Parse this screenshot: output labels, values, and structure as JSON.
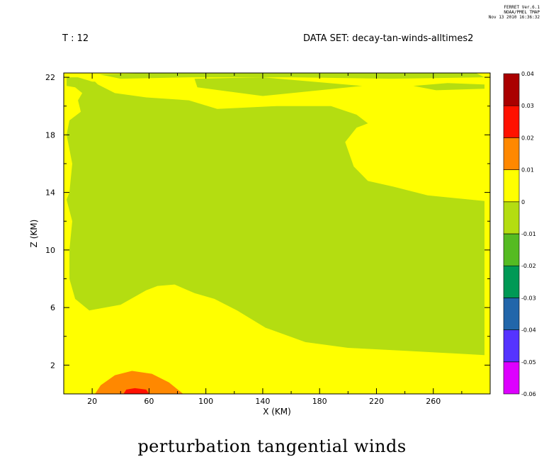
{
  "header": {
    "time_label": "T : 12",
    "dataset_label": "DATA SET: decay-tan-winds-alltimes2",
    "ferret_lines": [
      "FERRET Ver.6.1",
      "NOAA/PMEL TMAP",
      "Nov 13 2010 16:36:32"
    ]
  },
  "chart_data": {
    "type": "heatmap",
    "title": "perturbation tangential winds",
    "xlabel": "X (KM)",
    "ylabel": "Z (KM)",
    "xlim": [
      0,
      300
    ],
    "ylim": [
      0,
      22.3
    ],
    "x_ticks": [
      20,
      60,
      100,
      140,
      180,
      220,
      260
    ],
    "y_ticks": [
      2,
      6,
      10,
      14,
      18,
      22
    ],
    "colorbar": {
      "levels": [
        -0.06,
        -0.05,
        -0.04,
        -0.03,
        -0.02,
        -0.01,
        0,
        0.01,
        0.02,
        0.03,
        0.04
      ],
      "labels": [
        "-0.06",
        "-0.05",
        "-0.04",
        "-0.03",
        "-0.02",
        "-0.01",
        "0",
        "0.01",
        "0.02",
        "0.03",
        "0.04"
      ],
      "colors": [
        "#dd00ff",
        "#5533ff",
        "#2266aa",
        "#009955",
        "#55bb22",
        "#b4dd11",
        "#ffff00",
        "#ff8800",
        "#ff1100",
        "#aa0000"
      ]
    },
    "background_band": "0 to 0.01",
    "regions": [
      {
        "band": "-0.01 to 0",
        "polygon": [
          [
            2,
            21.4
          ],
          [
            8,
            21.3
          ],
          [
            13,
            20.9
          ],
          [
            10,
            20.4
          ],
          [
            12,
            19.6
          ],
          [
            4,
            19.0
          ],
          [
            2,
            18.0
          ],
          [
            6,
            16.0
          ],
          [
            4,
            14.0
          ],
          [
            2,
            13.5
          ],
          [
            6,
            12.0
          ],
          [
            4,
            10.0
          ],
          [
            4,
            8.0
          ],
          [
            8,
            6.6
          ],
          [
            18,
            5.8
          ],
          [
            40,
            6.2
          ],
          [
            58,
            7.2
          ],
          [
            66,
            7.5
          ],
          [
            78,
            7.6
          ],
          [
            92,
            7.0
          ],
          [
            106,
            6.6
          ],
          [
            122,
            5.8
          ],
          [
            142,
            4.6
          ],
          [
            170,
            3.6
          ],
          [
            200,
            3.2
          ],
          [
            240,
            3.0
          ],
          [
            296,
            2.7
          ],
          [
            296,
            13.4
          ],
          [
            256,
            13.8
          ],
          [
            232,
            14.4
          ],
          [
            214,
            14.8
          ],
          [
            204,
            15.8
          ],
          [
            198,
            17.5
          ],
          [
            206,
            18.5
          ],
          [
            214,
            18.8
          ],
          [
            206,
            19.4
          ],
          [
            188,
            20.0
          ],
          [
            150,
            20.0
          ],
          [
            108,
            19.8
          ],
          [
            88,
            20.4
          ],
          [
            58,
            20.6
          ],
          [
            36,
            20.9
          ],
          [
            26,
            21.4
          ],
          [
            20,
            21.7
          ],
          [
            10,
            22.0
          ],
          [
            2,
            22.0
          ]
        ]
      },
      {
        "band": "-0.01 to 0",
        "polygon": [
          [
            92,
            21.9
          ],
          [
            140,
            22.0
          ],
          [
            210,
            21.4
          ],
          [
            140,
            20.7
          ],
          [
            94,
            21.3
          ]
        ]
      },
      {
        "band": "-0.01 to 0",
        "polygon": [
          [
            10,
            21.7
          ],
          [
            22,
            21.7
          ],
          [
            26,
            21.3
          ],
          [
            20,
            21.0
          ],
          [
            10,
            21.3
          ]
        ]
      },
      {
        "band": "-0.01 to 0",
        "polygon": [
          [
            25,
            22.2
          ],
          [
            60,
            22.3
          ],
          [
            120,
            22.3
          ],
          [
            200,
            22.3
          ],
          [
            290,
            22.3
          ],
          [
            296,
            22.0
          ],
          [
            230,
            21.9
          ],
          [
            160,
            22.0
          ],
          [
            90,
            22.0
          ],
          [
            40,
            21.9
          ]
        ]
      },
      {
        "band": "-0.01 to 0",
        "polygon": [
          [
            246,
            21.4
          ],
          [
            270,
            21.6
          ],
          [
            296,
            21.5
          ],
          [
            296,
            21.2
          ],
          [
            262,
            21.1
          ]
        ]
      },
      {
        "band": "0.01 to 0.02",
        "polygon": [
          [
            22,
            0
          ],
          [
            26,
            0.6
          ],
          [
            36,
            1.3
          ],
          [
            48,
            1.6
          ],
          [
            62,
            1.4
          ],
          [
            74,
            0.8
          ],
          [
            84,
            0
          ]
        ]
      },
      {
        "band": "0.02 to 0.03",
        "polygon": [
          [
            42,
            0
          ],
          [
            44,
            0.3
          ],
          [
            50,
            0.4
          ],
          [
            58,
            0.3
          ],
          [
            60,
            0
          ]
        ]
      }
    ]
  }
}
